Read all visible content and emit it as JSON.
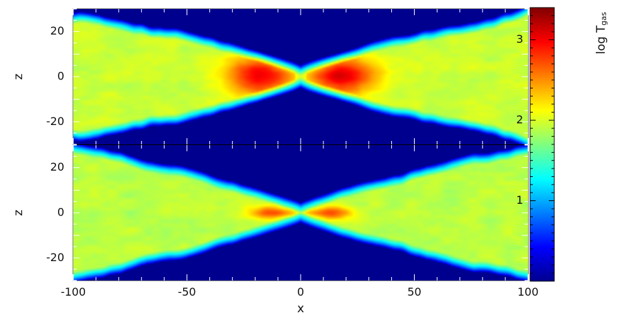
{
  "chart_data": {
    "type": "heatmap",
    "panels": [
      {
        "name": "",
        "xlabel": "x",
        "ylabel": "z",
        "xlim": [
          -100,
          100
        ],
        "ylim": [
          -30,
          30
        ],
        "y_ticks": [
          -20,
          0,
          20
        ],
        "y_tick_labels": [
          "-20",
          "0",
          "20"
        ],
        "structure": {
          "outer_disk_log_T": 1.95,
          "hot_core_log_T": 3.05,
          "hot_core_extent_x": 32,
          "hot_core_extent_z": 9,
          "disk_half_height_at_x0": 2,
          "disk_half_height_at_edge": 28,
          "background_log_T": 0.0
        }
      },
      {
        "name": "",
        "xlabel": "x",
        "ylabel": "z",
        "xlim": [
          -100,
          100
        ],
        "ylim": [
          -30,
          30
        ],
        "y_ticks": [
          -20,
          0,
          20
        ],
        "y_tick_labels": [
          "-20",
          "0",
          "20"
        ],
        "structure": {
          "outer_disk_log_T": 1.9,
          "hot_core_log_T": 2.75,
          "hot_core_extent_x": 22,
          "hot_core_extent_z": 3,
          "disk_half_height_at_x0": 1.5,
          "disk_half_height_at_edge": 28,
          "background_log_T": 0.0
        }
      }
    ],
    "x_ticks": [
      -100,
      -50,
      0,
      50,
      100
    ],
    "x_tick_labels": [
      "-100",
      "-50",
      "0",
      "50",
      "100"
    ],
    "colorbar": {
      "label": "log T",
      "label_subscript": "gas",
      "range": [
        0,
        3.4
      ],
      "ticks": [
        1,
        2,
        3
      ],
      "tick_labels": [
        "1",
        "2",
        "3"
      ],
      "colormap": "jet"
    },
    "colors": {
      "background": "#00008f",
      "cyan": "#00ffff",
      "yellow": "#ffff00",
      "red": "#ff0000",
      "dark_red": "#800000"
    }
  }
}
